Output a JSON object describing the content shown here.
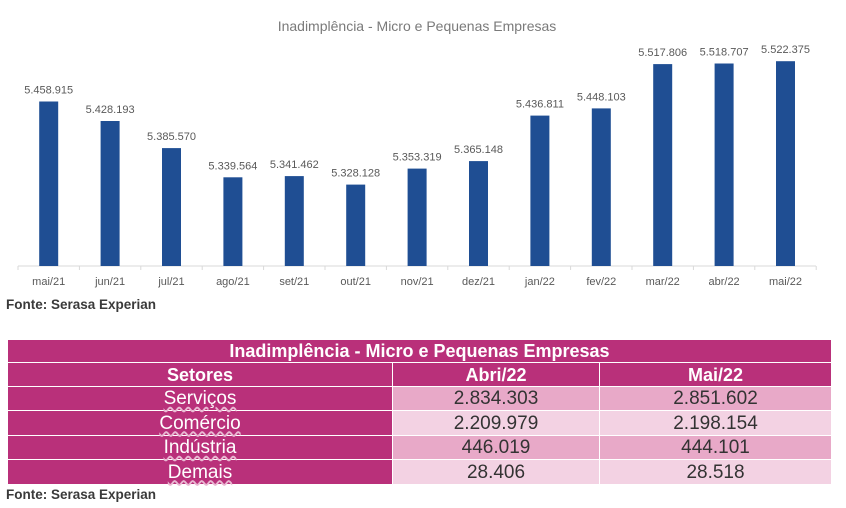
{
  "chart_data": {
    "type": "bar",
    "title": "Inadimplência  - Micro e Pequenas Empresas",
    "categories": [
      "mai/21",
      "jun/21",
      "jul/21",
      "ago/21",
      "set/21",
      "out/21",
      "nov/21",
      "dez/21",
      "jan/22",
      "fev/22",
      "mar/22",
      "abr/22",
      "mai/22"
    ],
    "values": [
      5458915,
      5428193,
      5385570,
      5339564,
      5341462,
      5328128,
      5353319,
      5365148,
      5436811,
      5448103,
      5517806,
      5518707,
      5522375
    ],
    "value_labels": [
      "5.458.915",
      "5.428.193",
      "5.385.570",
      "5.339.564",
      "5.341.462",
      "5.328.128",
      "5.353.319",
      "5.365.148",
      "5.436.811",
      "5.448.103",
      "5.517.806",
      "5.518.707",
      "5.522.375"
    ],
    "xlabel": "",
    "ylabel": "",
    "ylim": [
      5200000,
      5540000
    ],
    "bar_color": "#1f4e93",
    "grid": false,
    "legend": "none"
  },
  "chart_source": "Fonte: Serasa Experian",
  "table": {
    "title": "Inadimplência - Micro e Pequenas Empresas",
    "headers": [
      "Setores",
      "Abri/22",
      "Mai/22"
    ],
    "rows": [
      {
        "setor": "Serviços",
        "abr": "2.834.303",
        "mai": "2.851.602"
      },
      {
        "setor": "Comércio",
        "abr": "2.209.979",
        "mai": "2.198.154"
      },
      {
        "setor": "Indústria",
        "abr": "446.019",
        "mai": "444.101"
      },
      {
        "setor": "Demais",
        "abr": "28.406",
        "mai": "28.518"
      }
    ],
    "colors": {
      "header": "#b9307a",
      "row_dark": "#e8a9c8",
      "row_light": "#f3d2e3"
    }
  },
  "table_source": "Fonte: Serasa Experian"
}
